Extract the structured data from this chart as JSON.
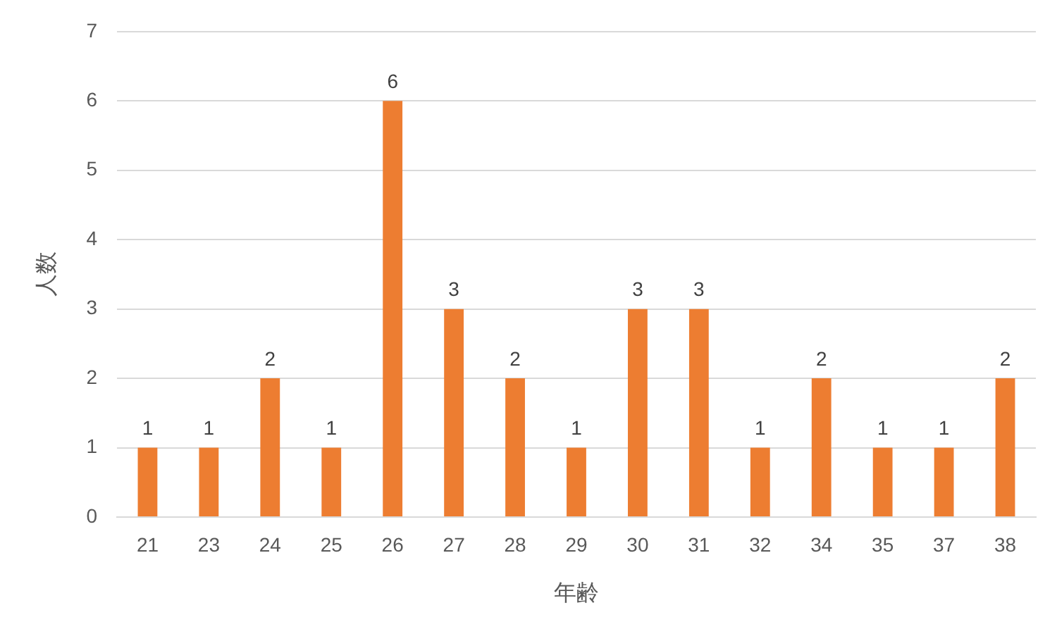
{
  "chart_data": {
    "type": "bar",
    "xlabel": "年齢",
    "ylabel": "人数",
    "categories": [
      "21",
      "23",
      "24",
      "25",
      "26",
      "27",
      "28",
      "29",
      "30",
      "31",
      "32",
      "34",
      "35",
      "37",
      "38"
    ],
    "values": [
      1,
      1,
      2,
      1,
      6,
      3,
      2,
      1,
      3,
      3,
      1,
      2,
      1,
      1,
      2
    ],
    "color": "#ed7d31",
    "ylim": [
      0,
      7
    ],
    "yticks": [
      0,
      1,
      2,
      3,
      4,
      5,
      6,
      7
    ],
    "grid": "y",
    "data_labels": true
  }
}
